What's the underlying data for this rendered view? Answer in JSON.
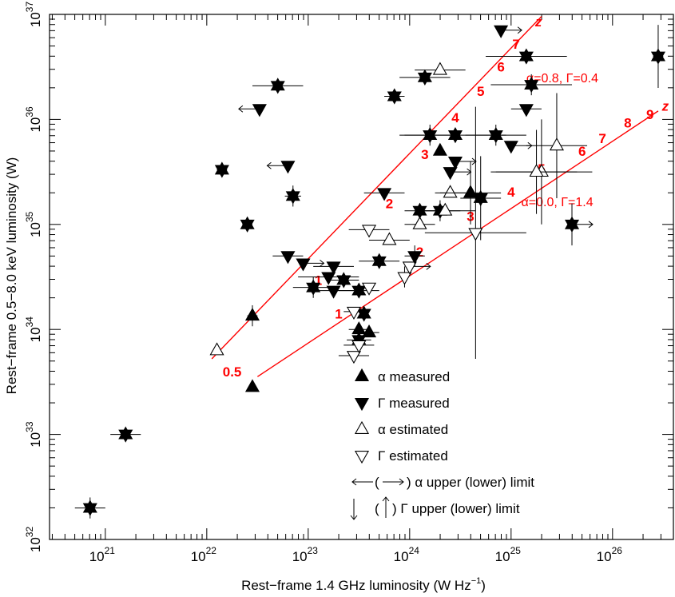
{
  "chart_data": {
    "type": "scatter",
    "title": "",
    "xlabel": "Rest−frame 1.4 GHz luminosity (W Hz",
    "xlabel_exp": "−1",
    "xlabel_tail": ")",
    "ylabel": "Rest−frame 0.5−8.0 keV luminosity (W)",
    "xscale": "log",
    "yscale": "log",
    "xlim_log": [
      20.45,
      26.6
    ],
    "ylim_log": [
      32.0,
      37.0
    ],
    "x_ticks": [
      {
        "base": "10",
        "exp": "21"
      },
      {
        "base": "10",
        "exp": "22"
      },
      {
        "base": "10",
        "exp": "23"
      },
      {
        "base": "10",
        "exp": "24"
      },
      {
        "base": "10",
        "exp": "25"
      },
      {
        "base": "10",
        "exp": "26"
      }
    ],
    "y_ticks": [
      {
        "base": "10",
        "exp": "32"
      },
      {
        "base": "10",
        "exp": "33"
      },
      {
        "base": "10",
        "exp": "34"
      },
      {
        "base": "10",
        "exp": "35"
      },
      {
        "base": "10",
        "exp": "36"
      },
      {
        "base": "10",
        "exp": "37"
      }
    ],
    "legend": {
      "placement": "bottom-right",
      "items": [
        {
          "symbol": "up-filled",
          "label": "α measured"
        },
        {
          "symbol": "down-filled",
          "label": "Γ measured"
        },
        {
          "symbol": "up-open",
          "label": "α estimated"
        },
        {
          "symbol": "down-open",
          "label": "Γ estimated"
        },
        {
          "symbol": "h-arrows",
          "label_pre": "(",
          "label_post": ") α upper (lower) limit"
        },
        {
          "symbol": "v-arrows",
          "label_pre": "(",
          "label_post": ") Γ upper (lower) limit"
        }
      ]
    },
    "tracks": [
      {
        "label": "α=0.8, Γ=0.4",
        "color": "#ff0000",
        "line": [
          [
            22.05,
            33.72
          ],
          [
            25.3,
            36.98
          ]
        ],
        "z_labels": [
          {
            "text": "1",
            "x": 23.1,
            "y": 34.47
          },
          {
            "text": "2",
            "x": 23.8,
            "y": 35.2
          },
          {
            "text": "3",
            "x": 24.15,
            "y": 35.67
          },
          {
            "text": "4",
            "x": 24.45,
            "y": 36.02
          },
          {
            "text": "5",
            "x": 24.7,
            "y": 36.27
          },
          {
            "text": "6",
            "x": 24.9,
            "y": 36.5
          },
          {
            "text": "7",
            "x": 25.05,
            "y": 36.72
          },
          {
            "text": "z",
            "x": 25.27,
            "y": 36.93
          }
        ],
        "label_pos": [
          25.15,
          36.4
        ]
      },
      {
        "label": "α=0.0, Γ=1.4",
        "color": "#ff0000",
        "line": [
          [
            22.5,
            33.55
          ],
          [
            26.45,
            36.08
          ]
        ],
        "z_labels": [
          {
            "text": "0.5",
            "x": 22.25,
            "y": 33.6
          },
          {
            "text": "1",
            "x": 23.3,
            "y": 34.15
          },
          {
            "text": "2",
            "x": 24.1,
            "y": 34.74
          },
          {
            "text": "3",
            "x": 24.6,
            "y": 35.08
          },
          {
            "text": "4",
            "x": 25.0,
            "y": 35.31
          },
          {
            "text": "5",
            "x": 25.3,
            "y": 35.53
          },
          {
            "text": "6",
            "x": 25.7,
            "y": 35.7
          },
          {
            "text": "7",
            "x": 25.9,
            "y": 35.82
          },
          {
            "text": "8",
            "x": 26.15,
            "y": 35.97
          },
          {
            "text": "9",
            "x": 26.37,
            "y": 36.05
          },
          {
            "text": "z",
            "x": 26.52,
            "y": 36.13
          }
        ],
        "label_pos": [
          25.1,
          35.22
        ]
      }
    ],
    "points": [
      {
        "x": 20.85,
        "y": 32.3,
        "type": "both",
        "xerr": 0.15,
        "yerr": 0.1
      },
      {
        "x": 21.2,
        "y": 33.0,
        "type": "both",
        "xerr": 0.15,
        "yerr": 0.06
      },
      {
        "x": 22.15,
        "y": 35.52,
        "type": "both",
        "xerr": 0.05,
        "yerr": 0.05
      },
      {
        "x": 22.1,
        "y": 33.8,
        "type": "a-est"
      },
      {
        "x": 22.45,
        "y": 34.13,
        "type": "a-meas",
        "xerr": 0.05,
        "yerr": 0.1
      },
      {
        "x": 22.45,
        "y": 33.45,
        "type": "a-meas"
      },
      {
        "x": 22.4,
        "y": 35.0,
        "type": "both",
        "xerr": 0.05,
        "yerr": 0.05
      },
      {
        "x": 22.52,
        "y": 36.1,
        "type": "g-meas",
        "xarrow": "left"
      },
      {
        "x": 22.7,
        "y": 36.32,
        "type": "both",
        "xerr": 0.25,
        "yerr": 0.05
      },
      {
        "x": 22.8,
        "y": 35.56,
        "type": "g-meas",
        "xarrow": "left"
      },
      {
        "x": 22.8,
        "y": 34.7,
        "type": "g-meas",
        "xerr": 0.15
      },
      {
        "x": 22.95,
        "y": 34.63,
        "type": "g-meas",
        "xarrow": "right"
      },
      {
        "x": 22.85,
        "y": 35.27,
        "type": "both",
        "xerr": 0.08,
        "yerr": 0.1
      },
      {
        "x": 23.05,
        "y": 34.4,
        "type": "both",
        "xerr": 0.2,
        "yerr": 0.1
      },
      {
        "x": 23.25,
        "y": 34.37,
        "type": "g-meas",
        "xerr": 0.2
      },
      {
        "x": 23.2,
        "y": 34.5,
        "type": "g-meas",
        "xerr": 0.3
      },
      {
        "x": 23.55,
        "y": 34.15,
        "type": "both"
      },
      {
        "x": 23.5,
        "y": 34.0,
        "type": "a-meas",
        "xerr": 0.1
      },
      {
        "x": 23.5,
        "y": 33.9,
        "type": "both",
        "xerr": 0.12
      },
      {
        "x": 23.45,
        "y": 34.17,
        "type": "g-est",
        "xerr": 0.1
      },
      {
        "x": 23.45,
        "y": 33.75,
        "type": "g-est",
        "xerr": 0.15
      },
      {
        "x": 23.5,
        "y": 33.85,
        "type": "g-est",
        "xerr": 0.15
      },
      {
        "x": 23.6,
        "y": 33.97,
        "type": "a-meas",
        "xerr": 0.1
      },
      {
        "x": 23.25,
        "y": 34.6,
        "type": "g-meas",
        "xerr": 0.2
      },
      {
        "x": 23.35,
        "y": 34.47,
        "type": "both",
        "xerr": 0.15
      },
      {
        "x": 23.5,
        "y": 34.37,
        "type": "both",
        "xerr": 0.2
      },
      {
        "x": 23.7,
        "y": 34.65,
        "type": "both",
        "xerr": 0.2
      },
      {
        "x": 23.6,
        "y": 34.4,
        "type": "g-est"
      },
      {
        "x": 23.6,
        "y": 34.95,
        "type": "g-est",
        "xerr": 0.2
      },
      {
        "x": 23.8,
        "y": 34.85,
        "type": "a-est",
        "xerr": 0.2
      },
      {
        "x": 23.95,
        "y": 34.5,
        "type": "g-est",
        "yerr": 0.1
      },
      {
        "x": 24.0,
        "y": 34.6,
        "type": "g-est",
        "xarrow": "right"
      },
      {
        "x": 24.1,
        "y": 35.0,
        "type": "a-est",
        "xerr": 0.15
      },
      {
        "x": 24.05,
        "y": 34.7,
        "type": "g-meas",
        "xerr": 0.1,
        "yerr": 0.1
      },
      {
        "x": 24.1,
        "y": 35.13,
        "type": "both",
        "xerr": 0.15
      },
      {
        "x": 24.3,
        "y": 35.13,
        "type": "both",
        "xerr": 0.2,
        "yerr": 0.1
      },
      {
        "x": 24.35,
        "y": 35.13,
        "type": "a-est",
        "xerr": 0.3
      },
      {
        "x": 24.45,
        "y": 35.85,
        "type": "both",
        "xerr": 0.5
      },
      {
        "x": 24.4,
        "y": 35.5,
        "type": "g-meas",
        "xarrow": "right"
      },
      {
        "x": 24.3,
        "y": 35.7,
        "type": "a-meas"
      },
      {
        "x": 24.45,
        "y": 35.6,
        "type": "g-meas",
        "xarrow": "right"
      },
      {
        "x": 24.4,
        "y": 35.3,
        "type": "a-est",
        "xerr": 0.15
      },
      {
        "x": 24.2,
        "y": 35.85,
        "type": "both",
        "xerr": 0.3,
        "yerr": 0.1
      },
      {
        "x": 24.15,
        "y": 36.4,
        "type": "both",
        "xerr": 0.25
      },
      {
        "x": 24.3,
        "y": 36.47,
        "type": "a-est",
        "xerr": 0.25
      },
      {
        "x": 23.85,
        "y": 36.22,
        "type": "both",
        "xerr": 0.1
      },
      {
        "x": 23.75,
        "y": 35.3,
        "type": "g-meas",
        "xerr": 0.2
      },
      {
        "x": 24.6,
        "y": 35.3,
        "type": "a-meas",
        "xerr": 0.3,
        "yerr": 0.3
      },
      {
        "x": 24.7,
        "y": 35.25,
        "type": "both",
        "xerr": 0.2,
        "yerr": 0.4
      },
      {
        "x": 24.65,
        "y": 34.92,
        "type": "g-est",
        "xerr": 0.5,
        "yerr": 1.2
      },
      {
        "x": 24.85,
        "y": 35.85,
        "type": "both",
        "xerr": 0.3,
        "yerr": 0.1
      },
      {
        "x": 24.9,
        "y": 36.85,
        "type": "g-meas",
        "xarrow": "right"
      },
      {
        "x": 25.15,
        "y": 36.6,
        "type": "both",
        "xerr": 0.4
      },
      {
        "x": 25.0,
        "y": 35.75,
        "type": "g-meas",
        "xarrow": "right"
      },
      {
        "x": 25.2,
        "y": 36.33,
        "type": "both",
        "xerr": 0.4,
        "yerr": 0.1
      },
      {
        "x": 25.15,
        "y": 36.1,
        "type": "g-meas",
        "xerr": 0.15
      },
      {
        "x": 25.3,
        "y": 35.5,
        "type": "a-est",
        "xerr": 0.5,
        "yerr": 0.5
      },
      {
        "x": 25.25,
        "y": 35.5,
        "type": "a-est",
        "xerr": 0.4,
        "yerr": 0.4
      },
      {
        "x": 25.6,
        "y": 35.0,
        "type": "both",
        "xarrow": "right",
        "yerr": 0.2
      },
      {
        "x": 25.45,
        "y": 35.75,
        "type": "a-est",
        "xerr": 0.3,
        "yerr": 0.5
      },
      {
        "x": 26.45,
        "y": 36.6,
        "type": "both",
        "xerr": 0.05,
        "yerr": 0.3
      }
    ]
  }
}
